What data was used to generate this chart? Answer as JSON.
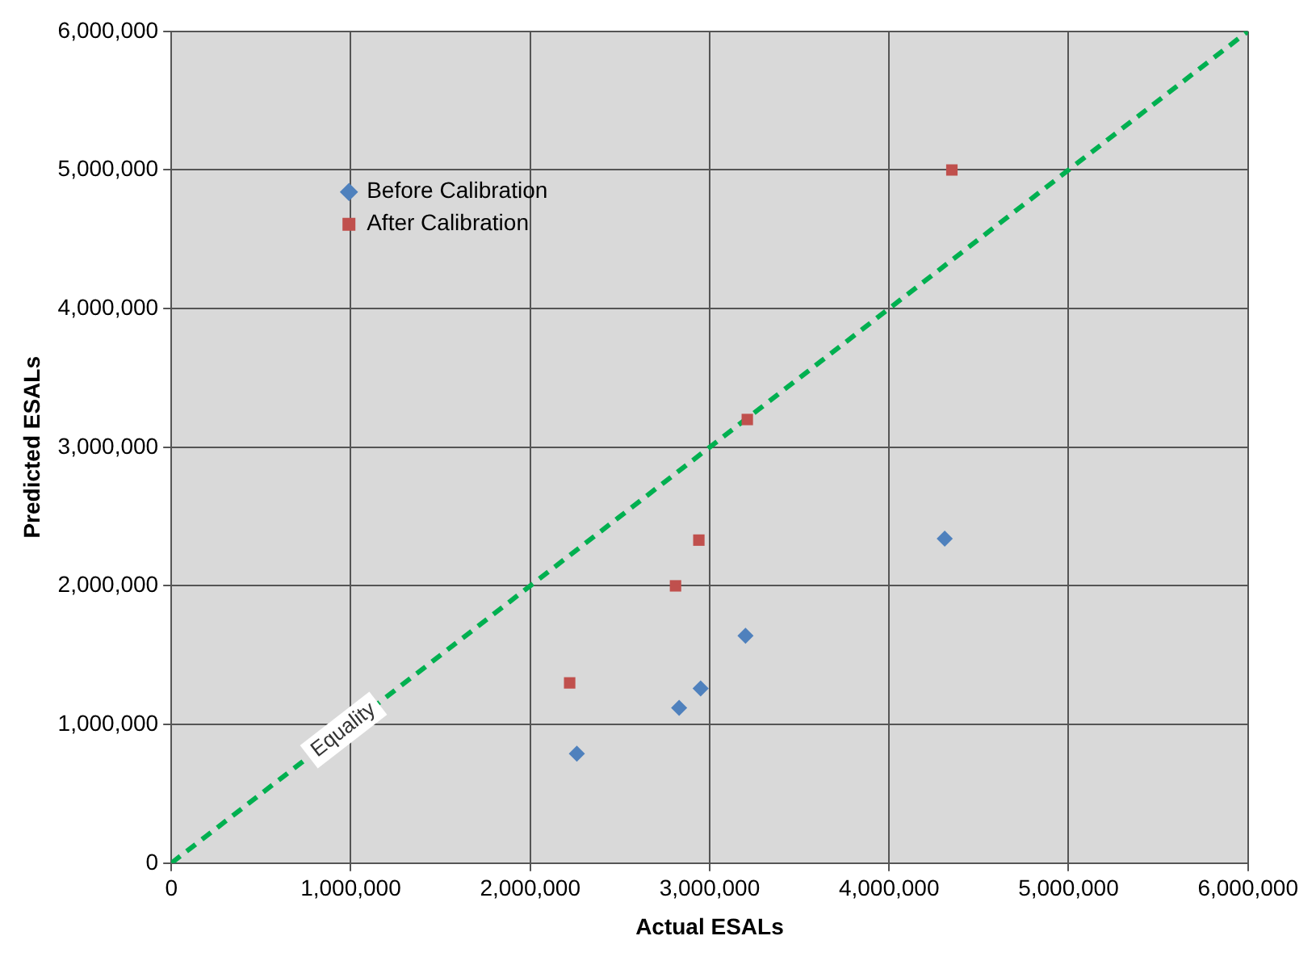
{
  "chart_data": {
    "type": "scatter",
    "xlabel": "Actual ESALs",
    "ylabel": "Predicted ESALs",
    "series": [
      {
        "name": "Before Calibration",
        "color": "#4f81bd",
        "marker": "diamond",
        "x": [
          2260000,
          2830000,
          2950000,
          3200000,
          4310000
        ],
        "values": [
          790000,
          1120000,
          1260000,
          1640000,
          2340000
        ]
      },
      {
        "name": "After Calibration",
        "color": "#c0504d",
        "marker": "square",
        "x": [
          2220000,
          2810000,
          2940000,
          3210000,
          4350000
        ],
        "values": [
          1300000,
          2000000,
          2330000,
          3200000,
          5000000
        ]
      },
      {
        "name": "Equality",
        "type": "line",
        "color": "#00b050",
        "line_style": "dashed",
        "marker": "none",
        "x": [
          0,
          6000000
        ],
        "values": [
          0,
          6000000
        ]
      }
    ],
    "xlim": [
      0,
      6000000
    ],
    "xticks": [
      0,
      {
        "value": 1000000,
        "label": "1,000,000"
      },
      {
        "value": 2000000,
        "label": "2,000,000"
      },
      {
        "value": 3000000,
        "label": "3,000,000"
      },
      {
        "value": 4000000,
        "label": "4,000,000"
      },
      {
        "value": 5000000,
        "label": "5,000,000"
      },
      {
        "value": 6000000,
        "label": "6,000,000"
      }
    ],
    "ylim": [
      0,
      6000000
    ],
    "yticks": [
      0,
      {
        "value": 1000000,
        "label": "1,000,000"
      },
      {
        "value": 2000000,
        "label": "2,000,000"
      },
      {
        "value": 3000000,
        "label": "3,000,000"
      },
      {
        "value": 4000000,
        "label": "4,000,000"
      },
      {
        "value": 5000000,
        "label": "5,000,000"
      },
      {
        "value": 6000000,
        "label": "6,000,000"
      }
    ],
    "grid": true,
    "legend": "top left"
  }
}
